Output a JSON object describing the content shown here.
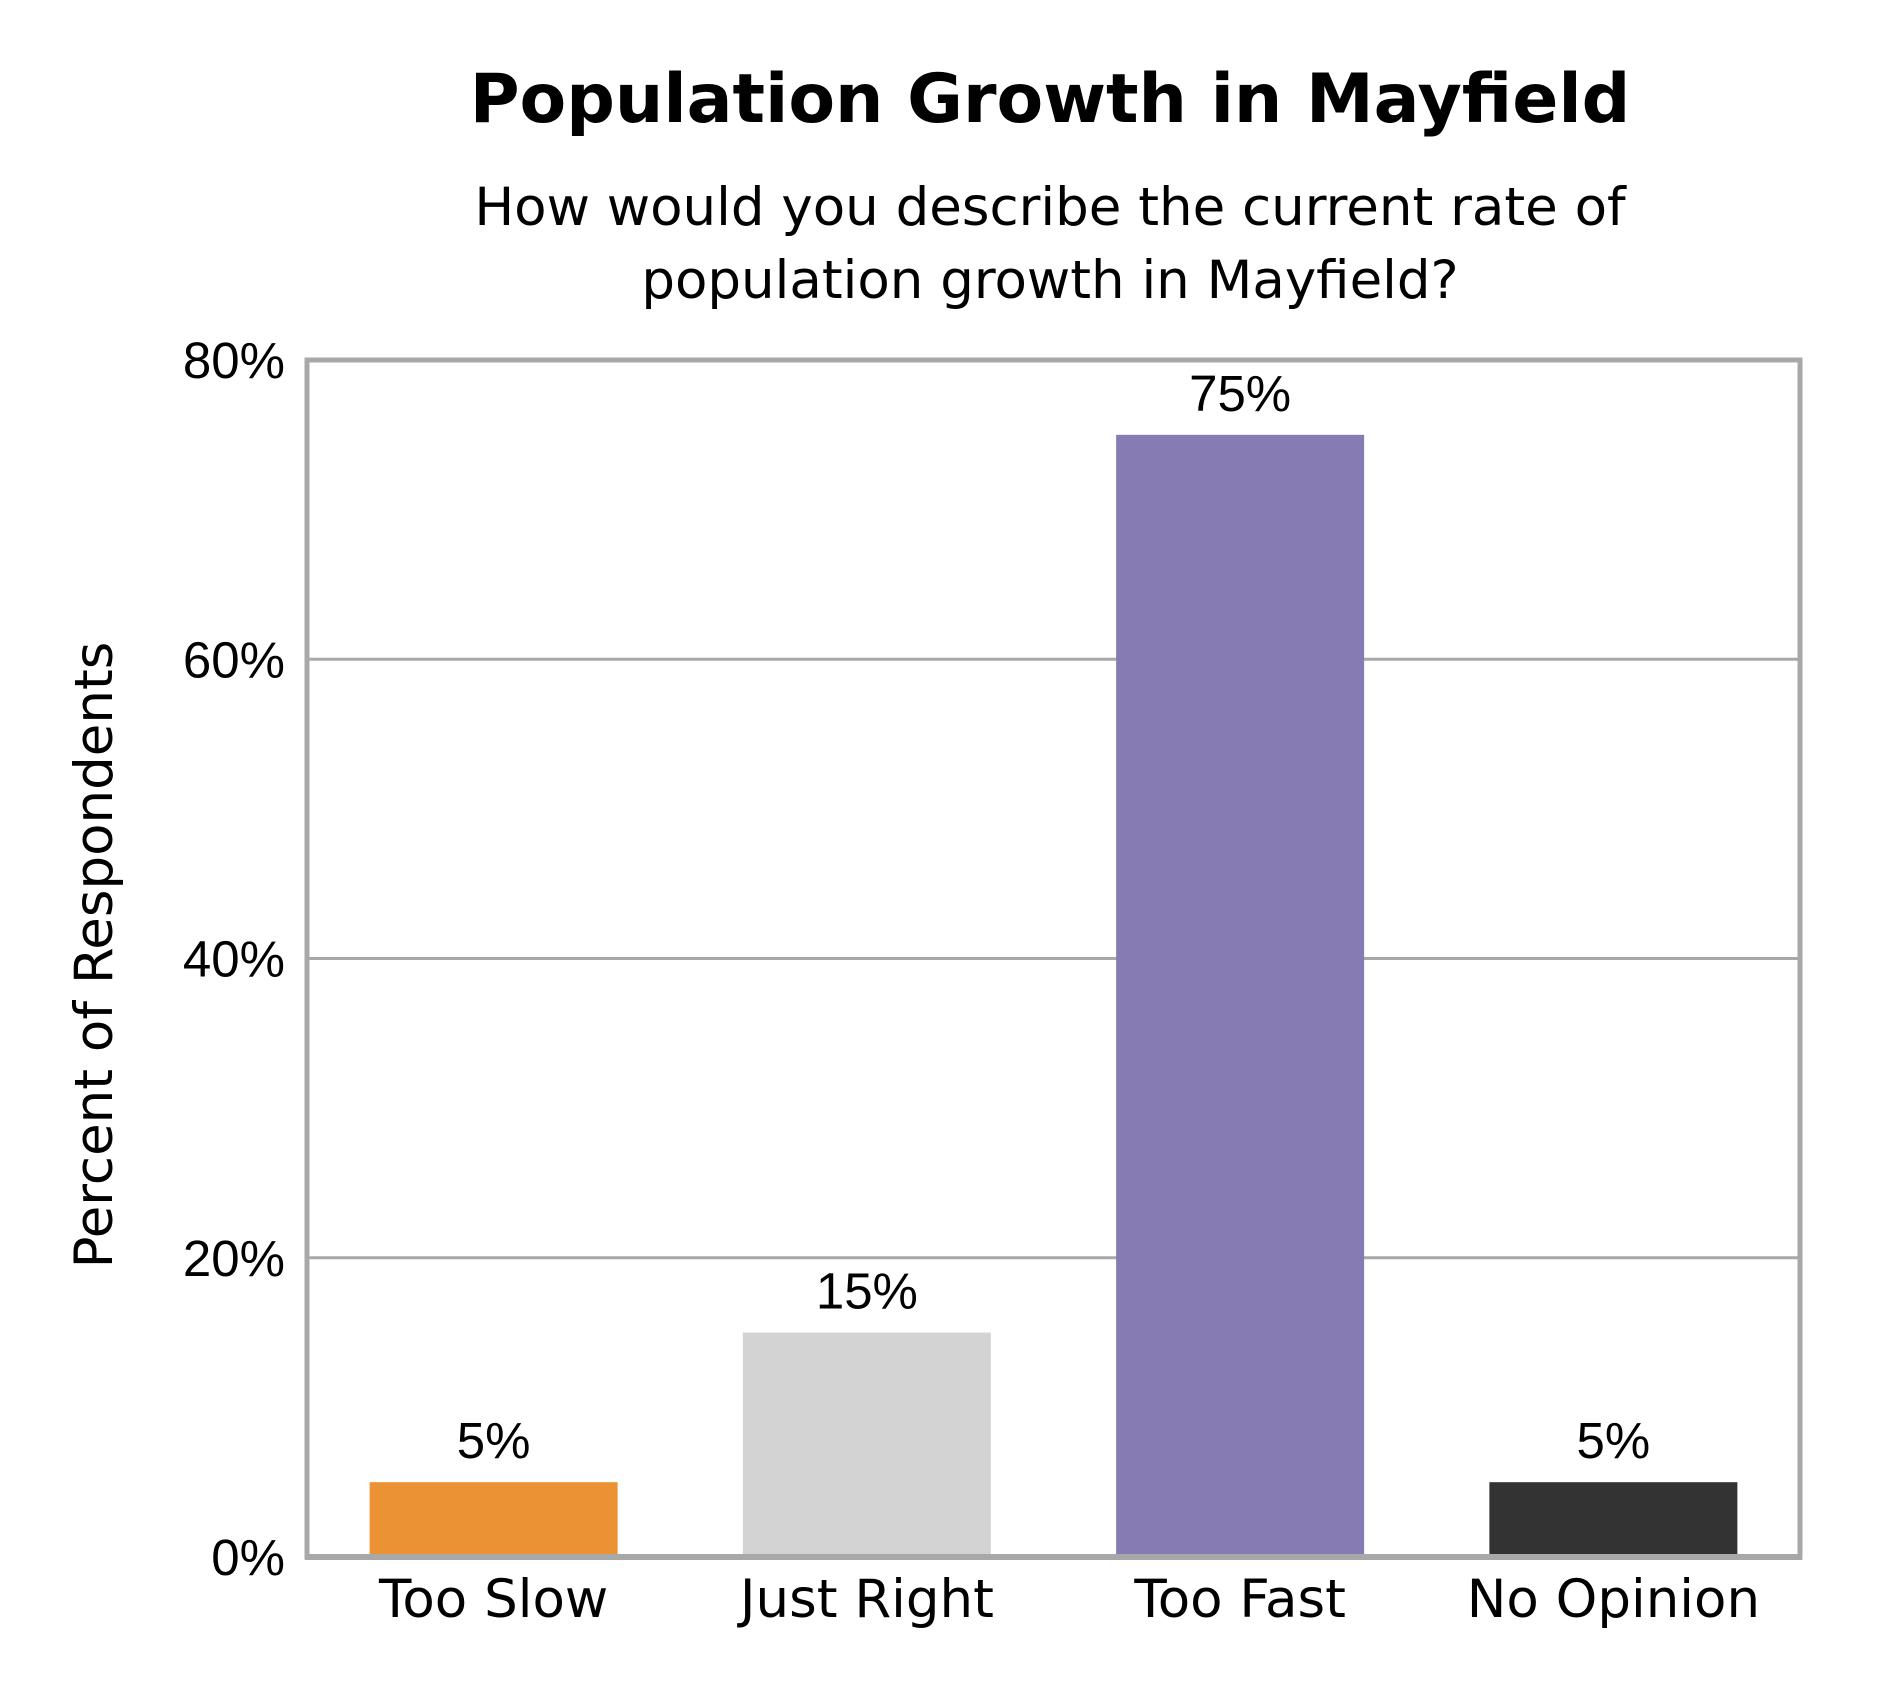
{
  "chart_data": {
    "type": "bar",
    "title": "Population Growth in Mayfield",
    "subtitle_lines": [
      "How would you describe the current rate of",
      "population growth in Mayfield?"
    ],
    "xlabel": "",
    "ylabel": "Percent of Respondents",
    "ylim": [
      0,
      80
    ],
    "yticks": [
      0,
      20,
      40,
      60,
      80
    ],
    "ytick_labels": [
      "0%",
      "20%",
      "40%",
      "60%",
      "80%"
    ],
    "grid": true,
    "legend": "none",
    "categories": [
      "Too Slow",
      "Just Right",
      "Too Fast",
      "No Opinion"
    ],
    "values": [
      5,
      15,
      75,
      5
    ],
    "data_labels": [
      "5%",
      "15%",
      "75%",
      "5%"
    ],
    "colors": [
      "#EB9334",
      "#D3D3D3",
      "#877BB4",
      "#333333"
    ]
  }
}
